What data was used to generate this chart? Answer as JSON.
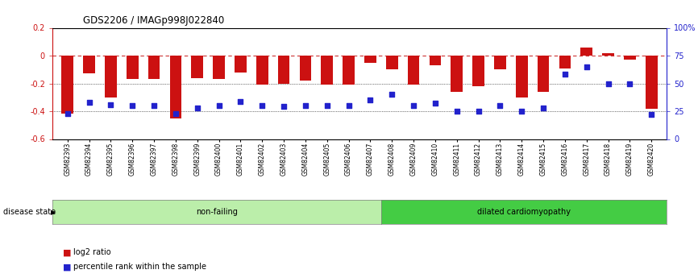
{
  "title": "GDS2206 / IMAGp998J022840",
  "samples": [
    "GSM82393",
    "GSM82394",
    "GSM82395",
    "GSM82396",
    "GSM82397",
    "GSM82398",
    "GSM82399",
    "GSM82400",
    "GSM82401",
    "GSM82402",
    "GSM82403",
    "GSM82404",
    "GSM82405",
    "GSM82406",
    "GSM82407",
    "GSM82408",
    "GSM82409",
    "GSM82410",
    "GSM82411",
    "GSM82412",
    "GSM82413",
    "GSM82414",
    "GSM82415",
    "GSM82416",
    "GSM82417",
    "GSM82418",
    "GSM82419",
    "GSM82420"
  ],
  "log2_ratio": [
    -0.42,
    -0.13,
    -0.3,
    -0.17,
    -0.17,
    -0.45,
    -0.16,
    -0.17,
    -0.12,
    -0.21,
    -0.2,
    -0.18,
    -0.21,
    -0.21,
    -0.05,
    -0.1,
    -0.21,
    -0.07,
    -0.26,
    -0.22,
    -0.1,
    -0.3,
    -0.26,
    -0.09,
    0.06,
    0.02,
    -0.03,
    -0.38
  ],
  "percentile": [
    23,
    33,
    31,
    30,
    30,
    23,
    28,
    30,
    34,
    30,
    29,
    30,
    30,
    30,
    35,
    40,
    30,
    32,
    25,
    25,
    30,
    25,
    28,
    58,
    65,
    50,
    50,
    22
  ],
  "non_failing_count": 15,
  "ylim_left": [
    -0.6,
    0.2
  ],
  "ylim_right": [
    0,
    100
  ],
  "yticks_left": [
    -0.6,
    -0.4,
    -0.2,
    0.0,
    0.2
  ],
  "ytick_labels_left": [
    "-0.6",
    "-0.4",
    "-0.2",
    "0",
    "0.2"
  ],
  "yticks_right": [
    0,
    25,
    50,
    75,
    100
  ],
  "ytick_labels_right": [
    "0",
    "25",
    "50",
    "75",
    "100%"
  ],
  "bar_color": "#cc1111",
  "dot_color": "#2222cc",
  "zero_line_color": "#cc3333",
  "grid_color": "#000000",
  "bg_color": "#ffffff",
  "nonfailing_color": "#bbeeaa",
  "dilated_color": "#44cc44",
  "disease_state_label": "disease state",
  "nonfailing_label": "non-failing",
  "dilated_label": "dilated cardiomyopathy",
  "legend_log2": "log2 ratio",
  "legend_pct": "percentile rank within the sample"
}
